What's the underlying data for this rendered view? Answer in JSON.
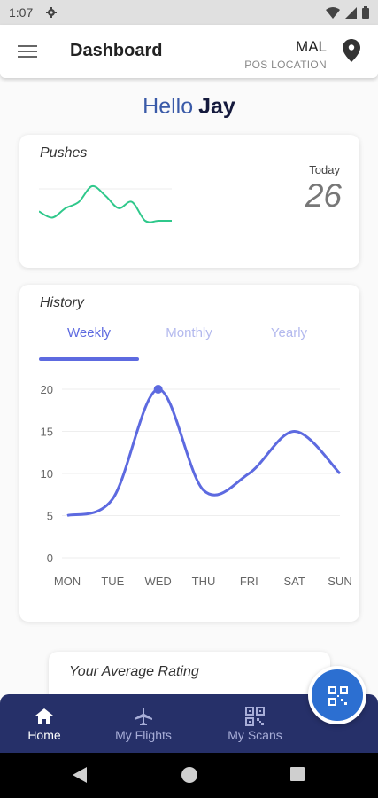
{
  "status_bar": {
    "time": "1:07",
    "icons": [
      "gear-icon",
      "wifi-icon",
      "signal-icon",
      "battery-icon"
    ]
  },
  "app_bar": {
    "title": "Dashboard",
    "pos_code": "MAL",
    "pos_label": "POS LOCATION"
  },
  "greeting": {
    "word": "Hello",
    "name": "Jay"
  },
  "pushes": {
    "title": "Pushes",
    "today_label": "Today",
    "today_value": "26",
    "sparkline_values": [
      4,
      2,
      5,
      7,
      12,
      9,
      5,
      7,
      1,
      1,
      1
    ],
    "color": "#2fc88b"
  },
  "history": {
    "title": "History",
    "tabs": [
      {
        "label": "Weekly",
        "selected": true
      },
      {
        "label": "Monthly",
        "selected": false
      },
      {
        "label": "Yearly",
        "selected": false
      }
    ],
    "accent": "#5d6ae0"
  },
  "chart_data": {
    "type": "line",
    "categories": [
      "MON",
      "TUE",
      "WED",
      "THU",
      "FRI",
      "SAT",
      "SUN"
    ],
    "series": [
      {
        "values": [
          5,
          7,
          20,
          8,
          10,
          15,
          10
        ]
      }
    ],
    "yticks": [
      0,
      5,
      10,
      15,
      20
    ],
    "ylim": [
      0,
      20
    ],
    "highlight_index": 2,
    "grid": true,
    "xlabel": "",
    "ylabel": "",
    "title": ""
  },
  "rating": {
    "title": "Your Average Rating"
  },
  "bottom_nav": {
    "items": [
      {
        "label": "Home",
        "icon": "home-icon",
        "active": true
      },
      {
        "label": "My Flights",
        "icon": "airplane-icon",
        "active": false
      },
      {
        "label": "My Scans",
        "icon": "qr-code-icon",
        "active": false
      }
    ],
    "fab_icon": "qr-scan-icon"
  }
}
